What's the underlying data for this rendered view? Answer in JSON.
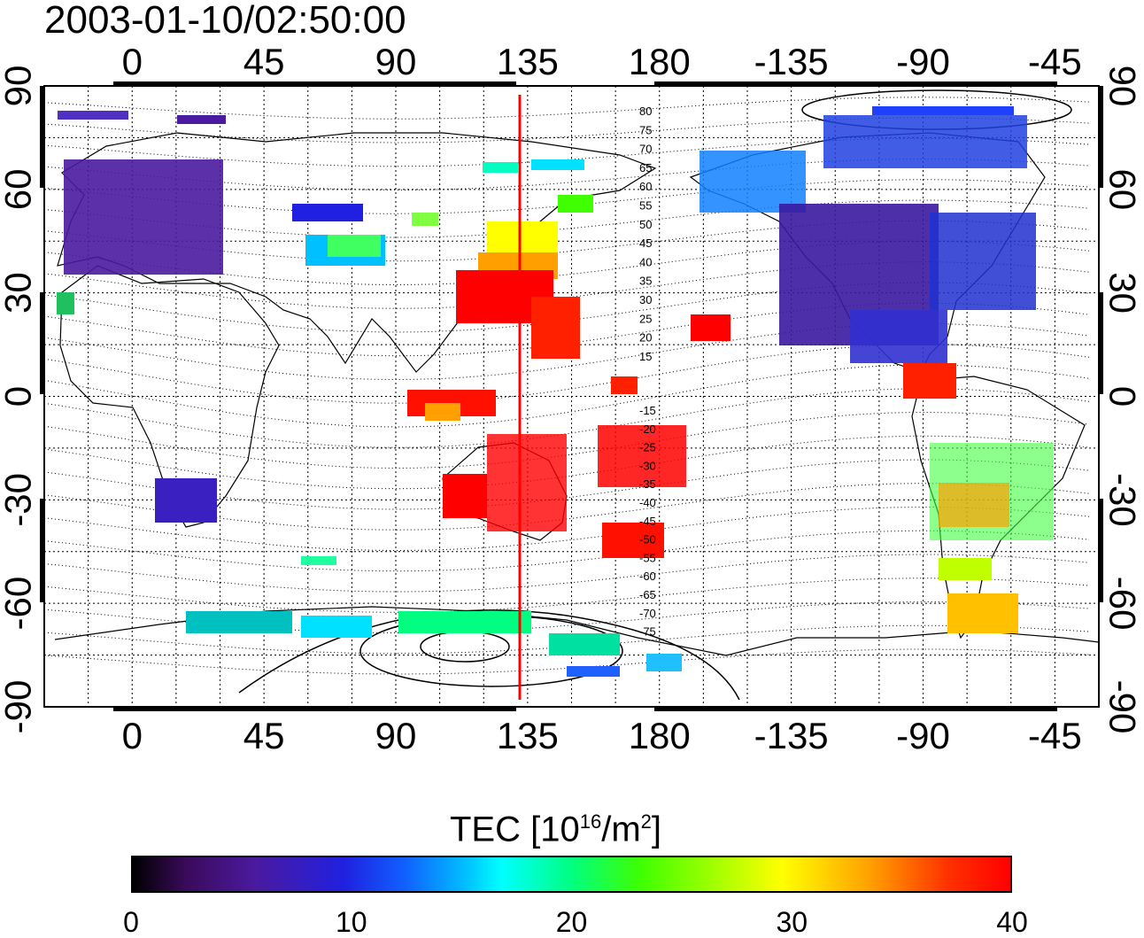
{
  "title": "2003-01-10/02:50:00",
  "map": {
    "lon_ticks_top": [
      "0",
      "45",
      "90",
      "135",
      "180",
      "-135",
      "-90",
      "-45"
    ],
    "lon_ticks_bottom": [
      "0",
      "45",
      "90",
      "135",
      "180",
      "-135",
      "-90",
      "-45"
    ],
    "lat_ticks_left": [
      "90",
      "60",
      "30",
      "0",
      "-30",
      "-60",
      "-90"
    ],
    "lat_ticks_right": [
      "90",
      "60",
      "30",
      "0",
      "-30",
      "-60",
      "-90"
    ],
    "meridian_line_lon": 135,
    "meridian_line_color": "#ff0000",
    "contour_labels_north": [
      "80",
      "75",
      "70",
      "65",
      "60",
      "55",
      "50",
      "45",
      "40",
      "35",
      "30",
      "25",
      "20",
      "15"
    ],
    "contour_labels_south": [
      "-15",
      "-20",
      "-25",
      "-30",
      "-35",
      "-40",
      "-45",
      "-50",
      "-55",
      "-60",
      "-65",
      "-70",
      "-75"
    ]
  },
  "colorbar": {
    "title_main": "TEC  [10",
    "title_exp1": "16",
    "title_mid": "/m",
    "title_exp2": "2",
    "title_end": "]",
    "ticks": [
      "0",
      "10",
      "20",
      "30",
      "40"
    ],
    "range": [
      0,
      40
    ],
    "colors": [
      "#000000",
      "#4a1aa0",
      "#2020e0",
      "#00ffff",
      "#40ff00",
      "#ffff00",
      "#ff0000"
    ]
  }
}
